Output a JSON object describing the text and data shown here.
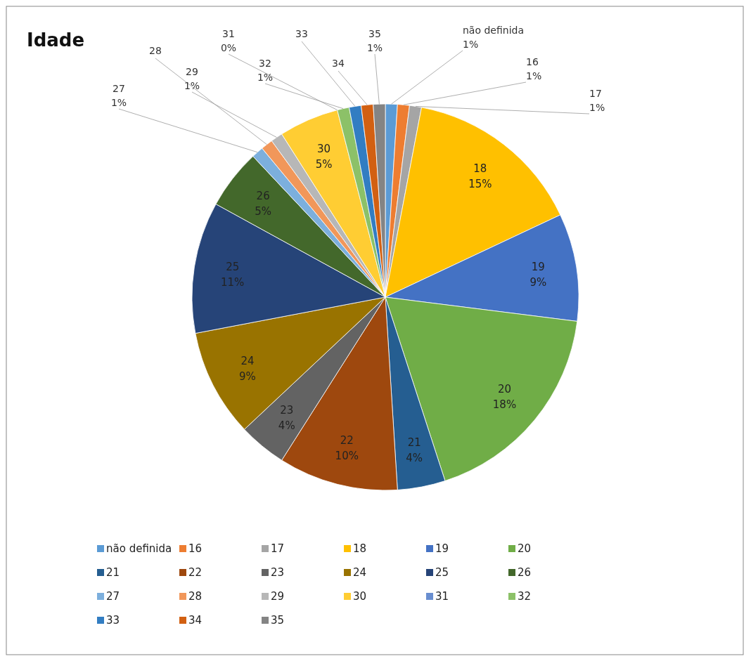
{
  "chart_data": {
    "type": "pie",
    "title": "Idade",
    "categories": [
      "não definida",
      "16",
      "17",
      "18",
      "19",
      "20",
      "21",
      "22",
      "23",
      "24",
      "25",
      "26",
      "27",
      "28",
      "29",
      "30",
      "31",
      "32",
      "33",
      "34",
      "35"
    ],
    "values": [
      1,
      1,
      1,
      15,
      9,
      18,
      4,
      10,
      4,
      9,
      11,
      5,
      1,
      1,
      1,
      5,
      0,
      1,
      1,
      1,
      1
    ],
    "value_labels": [
      "1%",
      "1%",
      "1%",
      "15%",
      "9%",
      "18%",
      "4%",
      "10%",
      "4%",
      "9%",
      "11%",
      "5%",
      "1%",
      null,
      "1%",
      "5%",
      "0%",
      "1%",
      null,
      null,
      "1%"
    ],
    "colors": [
      "#5b9bd5",
      "#ed7d31",
      "#a5a5a5",
      "#ffc000",
      "#4472c4",
      "#70ad47",
      "#255e91",
      "#9e480e",
      "#636363",
      "#997300",
      "#264478",
      "#43682b",
      "#7cafdd",
      "#f1975a",
      "#b7b7b7",
      "#ffcd33",
      "#698ed0",
      "#8cc168",
      "#327dc2",
      "#d26012",
      "#848484"
    ],
    "legend": "bottom"
  }
}
